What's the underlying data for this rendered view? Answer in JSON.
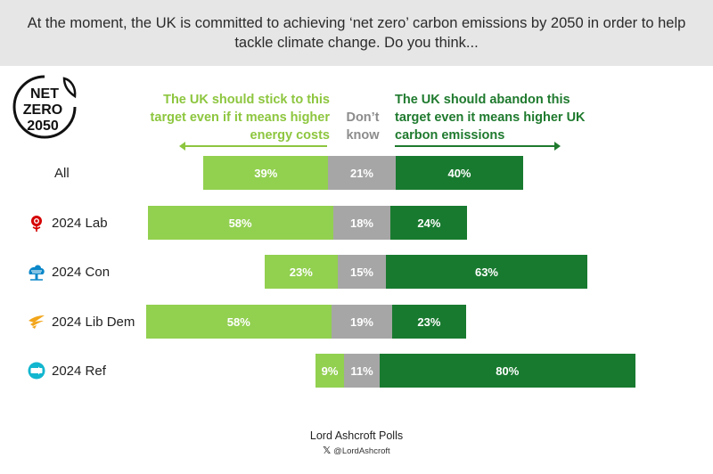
{
  "header": {
    "question": "At the moment, the UK is committed to achieving ‘net zero’ carbon emissions by 2050 in order to help tackle climate change. Do you think..."
  },
  "logo": {
    "line1": "NET",
    "line2": "ZERO",
    "line3": "2050"
  },
  "columns": {
    "stick": "The UK should stick to this target even if it means higher energy costs",
    "dont_know": "Don’t know",
    "abandon": "The UK should abandon this target even it means higher UK carbon emissions"
  },
  "colors": {
    "stick": "#92d050",
    "dont_know": "#a6a6a6",
    "abandon": "#187a2f",
    "stick_heading": "#8dc63f",
    "abandon_heading": "#1f7a2e"
  },
  "chart_data": {
    "type": "bar",
    "orientation": "horizontal-diverging-stacked",
    "categories": [
      "All",
      "2024 Lab",
      "2024 Con",
      "2024 Lib Dem",
      "2024 Ref"
    ],
    "series": [
      {
        "name": "The UK should stick to this target even if it means higher energy costs",
        "values": [
          39,
          58,
          23,
          58,
          9
        ]
      },
      {
        "name": "Don’t know",
        "values": [
          21,
          18,
          15,
          19,
          11
        ]
      },
      {
        "name": "The UK should abandon this target even it means higher UK carbon emissions",
        "values": [
          40,
          24,
          63,
          23,
          80
        ]
      }
    ],
    "labels": [
      [
        "39%",
        "21%",
        "40%"
      ],
      [
        "58%",
        "18%",
        "24%"
      ],
      [
        "23%",
        "15%",
        "63%"
      ],
      [
        "58%",
        "19%",
        "23%"
      ],
      [
        "9%",
        "11%",
        "80%"
      ]
    ],
    "party_icons": [
      "",
      "labour-rose-icon",
      "conservative-tree-icon",
      "libdem-bird-icon",
      "reform-arrow-icon"
    ]
  },
  "footer": {
    "source": "Lord Ashcroft Polls",
    "handle": "@LordAshcroft",
    "handle_icon": "x-logo-icon"
  }
}
